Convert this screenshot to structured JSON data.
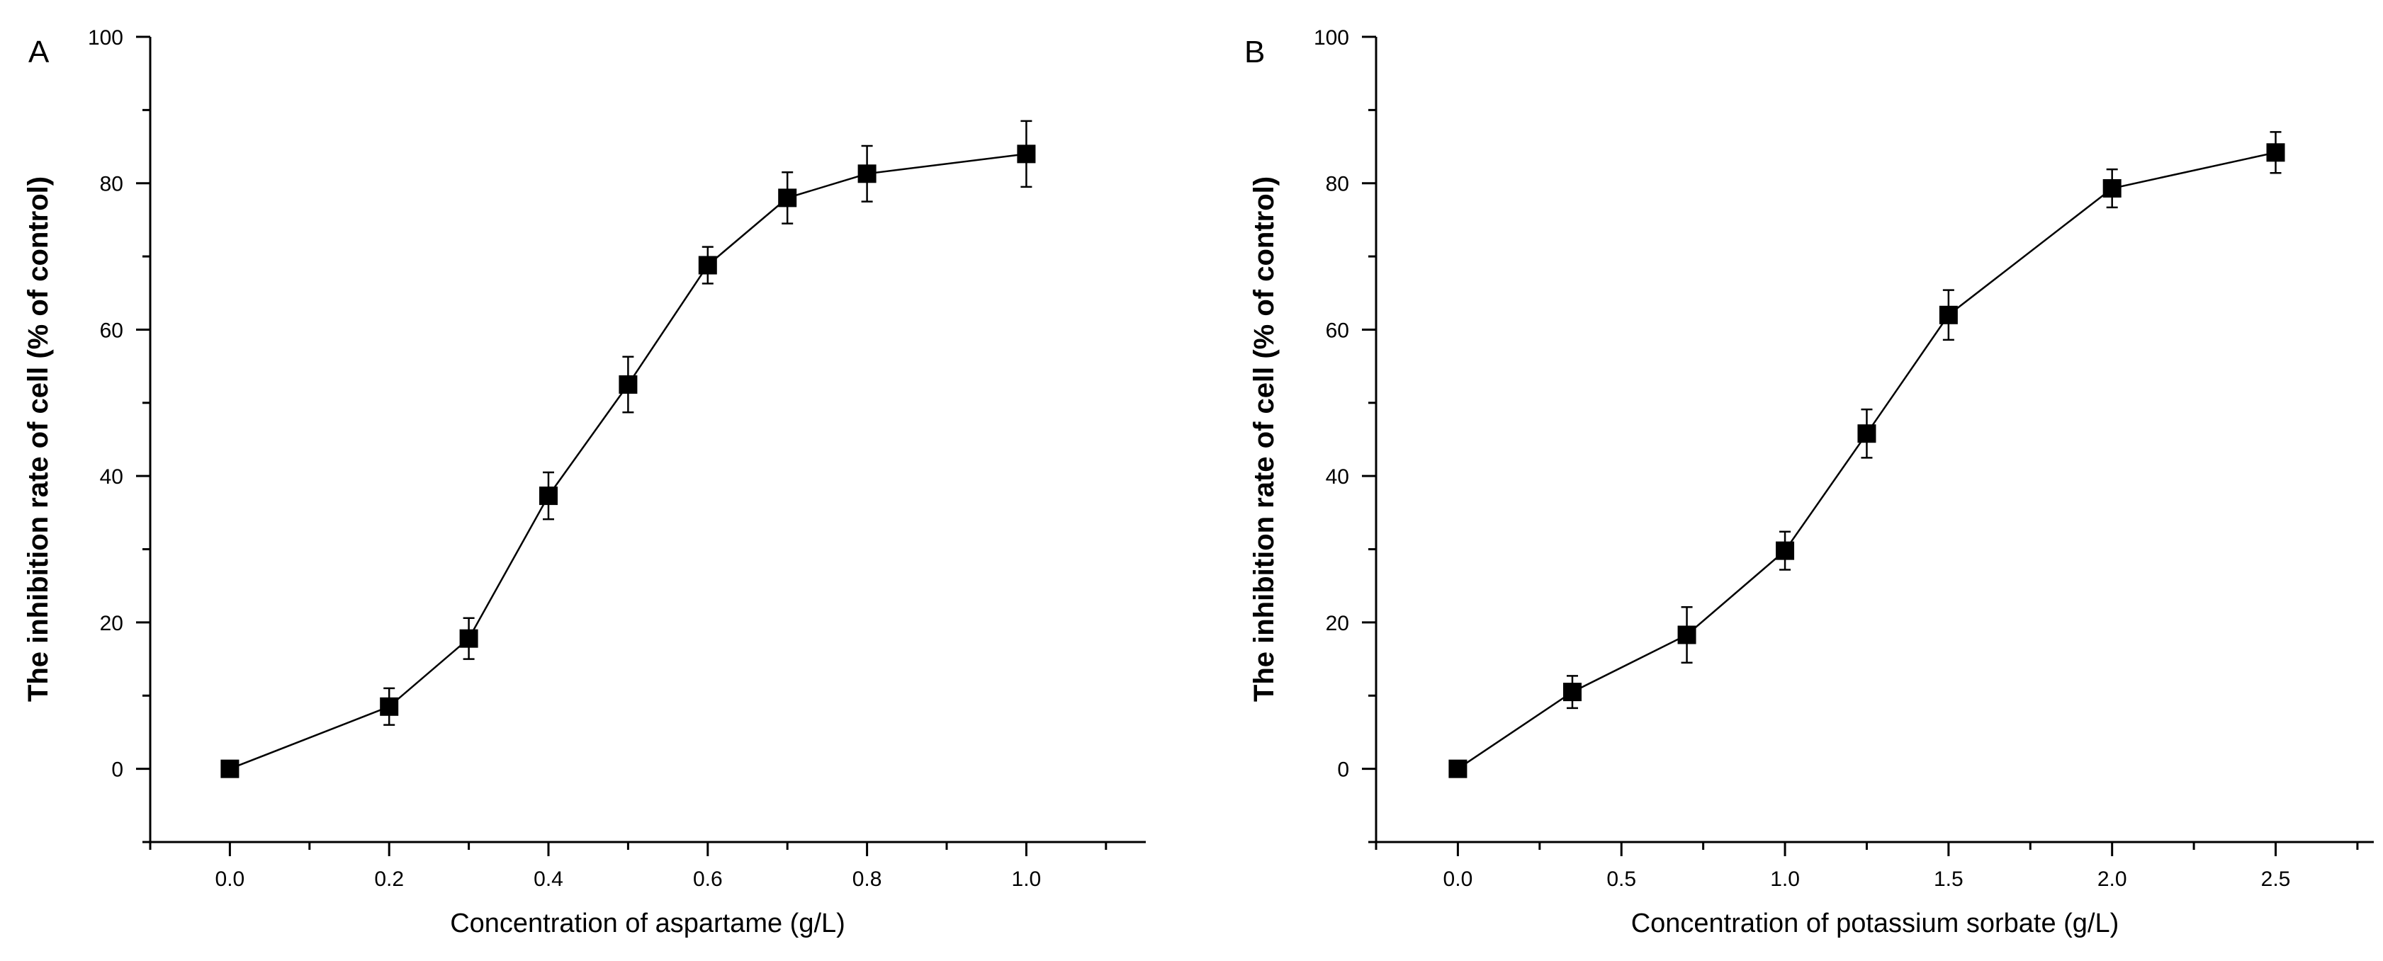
{
  "chart_data": [
    {
      "type": "line",
      "panel_label": "A",
      "title": "",
      "xlabel": "Concentration of aspartame (g/L)",
      "ylabel": "The inhibition rate of cell (% of control)",
      "xlim": [
        -0.1,
        1.15
      ],
      "ylim": [
        -10,
        100
      ],
      "x_major_ticks": [
        0.0,
        0.2,
        0.4,
        0.6,
        0.8,
        1.0
      ],
      "x_tick_labels": [
        "0.0",
        "0.2",
        "0.4",
        "0.6",
        "0.8",
        "1.0"
      ],
      "x_minor_ticks": [
        -0.1,
        0.1,
        0.3,
        0.5,
        0.7,
        0.9,
        1.1
      ],
      "y_major_ticks": [
        0,
        20,
        40,
        60,
        80,
        100
      ],
      "y_tick_labels": [
        "0",
        "20",
        "40",
        "60",
        "80",
        "100"
      ],
      "y_minor_ticks": [
        -10,
        10,
        30,
        50,
        70,
        90
      ],
      "marker": "square",
      "series": [
        {
          "name": "aspartame",
          "x": [
            0.0,
            0.2,
            0.3,
            0.4,
            0.5,
            0.6,
            0.7,
            0.8,
            1.0
          ],
          "y": [
            0,
            8.5,
            17.8,
            37.3,
            52.5,
            68.8,
            78.0,
            81.3,
            84.0
          ],
          "err": [
            0,
            2.5,
            2.8,
            3.2,
            3.8,
            2.5,
            3.5,
            3.8,
            4.5
          ]
        }
      ]
    },
    {
      "type": "line",
      "panel_label": "B",
      "title": "",
      "xlabel": "Concentration of potassium sorbate (g/L)",
      "ylabel": "The inhibition rate of cell (% of control)",
      "xlim": [
        -0.25,
        2.8
      ],
      "ylim": [
        -10,
        100
      ],
      "x_major_ticks": [
        0.0,
        0.5,
        1.0,
        1.5,
        2.0,
        2.5
      ],
      "x_tick_labels": [
        "0.0",
        "0.5",
        "1.0",
        "1.5",
        "2.0",
        "2.5"
      ],
      "x_minor_ticks": [
        -0.25,
        0.25,
        0.75,
        1.25,
        1.75,
        2.25,
        2.75
      ],
      "y_major_ticks": [
        0,
        20,
        40,
        60,
        80,
        100
      ],
      "y_tick_labels": [
        "0",
        "20",
        "40",
        "60",
        "80",
        "100"
      ],
      "y_minor_ticks": [
        -10,
        10,
        30,
        50,
        70,
        90
      ],
      "marker": "square",
      "series": [
        {
          "name": "potassium sorbate",
          "x": [
            0.0,
            0.35,
            0.7,
            1.0,
            1.25,
            1.5,
            2.0,
            2.5
          ],
          "y": [
            0,
            10.5,
            18.3,
            29.8,
            45.8,
            62.0,
            79.3,
            84.2
          ],
          "err": [
            0,
            2.2,
            3.8,
            2.6,
            3.3,
            3.4,
            2.6,
            2.8
          ]
        }
      ]
    }
  ]
}
